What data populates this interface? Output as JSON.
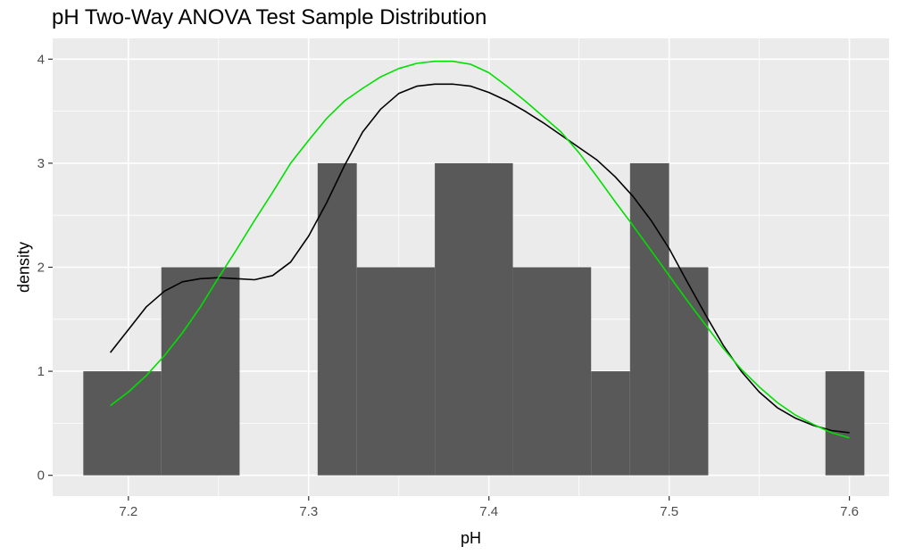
{
  "chart_data": {
    "type": "bar",
    "title": "pH Two-Way ANOVA Test Sample Distribution",
    "xlabel": "pH",
    "ylabel": "density",
    "xlim": [
      7.158,
      7.622
    ],
    "ylim": [
      -0.2,
      4.2
    ],
    "x_ticks": [
      "7.2",
      "7.3",
      "7.4",
      "7.5",
      "7.6"
    ],
    "x_tick_values": [
      7.2,
      7.3,
      7.4,
      7.5,
      7.6
    ],
    "y_ticks": [
      "0",
      "1",
      "2",
      "3",
      "4"
    ],
    "y_tick_values": [
      0,
      1,
      2,
      3,
      4
    ],
    "histogram": {
      "bin_width": 0.0217,
      "color": "#595959",
      "bins": [
        {
          "x0": 7.175,
          "x1": 7.2183,
          "density": 1
        },
        {
          "x0": 7.2183,
          "x1": 7.2617,
          "density": 2
        },
        {
          "x0": 7.305,
          "x1": 7.3267,
          "density": 3
        },
        {
          "x0": 7.3267,
          "x1": 7.37,
          "density": 2
        },
        {
          "x0": 7.37,
          "x1": 7.4133,
          "density": 3
        },
        {
          "x0": 7.4133,
          "x1": 7.4567,
          "density": 2
        },
        {
          "x0": 7.4567,
          "x1": 7.4783,
          "density": 1
        },
        {
          "x0": 7.4783,
          "x1": 7.5,
          "density": 3
        },
        {
          "x0": 7.5,
          "x1": 7.5217,
          "density": 2
        },
        {
          "x0": 7.5867,
          "x1": 7.6083,
          "density": 1
        }
      ]
    },
    "series": [
      {
        "color": "#000000",
        "points": [
          [
            7.19,
            1.18
          ],
          [
            7.2,
            1.4
          ],
          [
            7.21,
            1.62
          ],
          [
            7.22,
            1.77
          ],
          [
            7.23,
            1.86
          ],
          [
            7.24,
            1.89
          ],
          [
            7.25,
            1.9
          ],
          [
            7.26,
            1.89
          ],
          [
            7.27,
            1.88
          ],
          [
            7.28,
            1.92
          ],
          [
            7.29,
            2.05
          ],
          [
            7.3,
            2.3
          ],
          [
            7.31,
            2.62
          ],
          [
            7.32,
            2.98
          ],
          [
            7.33,
            3.3
          ],
          [
            7.34,
            3.52
          ],
          [
            7.35,
            3.67
          ],
          [
            7.36,
            3.74
          ],
          [
            7.37,
            3.76
          ],
          [
            7.38,
            3.76
          ],
          [
            7.39,
            3.74
          ],
          [
            7.4,
            3.68
          ],
          [
            7.41,
            3.6
          ],
          [
            7.42,
            3.5
          ],
          [
            7.43,
            3.39
          ],
          [
            7.44,
            3.27
          ],
          [
            7.45,
            3.15
          ],
          [
            7.46,
            3.03
          ],
          [
            7.47,
            2.87
          ],
          [
            7.48,
            2.68
          ],
          [
            7.49,
            2.45
          ],
          [
            7.5,
            2.18
          ],
          [
            7.51,
            1.86
          ],
          [
            7.52,
            1.55
          ],
          [
            7.53,
            1.25
          ],
          [
            7.54,
            1.0
          ],
          [
            7.55,
            0.8
          ],
          [
            7.56,
            0.65
          ],
          [
            7.57,
            0.55
          ],
          [
            7.58,
            0.48
          ],
          [
            7.59,
            0.43
          ],
          [
            7.6,
            0.41
          ]
        ]
      },
      {
        "color": "#00e000",
        "points": [
          [
            7.19,
            0.67
          ],
          [
            7.2,
            0.8
          ],
          [
            7.21,
            0.96
          ],
          [
            7.22,
            1.15
          ],
          [
            7.23,
            1.37
          ],
          [
            7.24,
            1.62
          ],
          [
            7.25,
            1.9
          ],
          [
            7.26,
            2.17
          ],
          [
            7.27,
            2.45
          ],
          [
            7.28,
            2.72
          ],
          [
            7.29,
            3.0
          ],
          [
            7.3,
            3.22
          ],
          [
            7.31,
            3.43
          ],
          [
            7.32,
            3.6
          ],
          [
            7.33,
            3.72
          ],
          [
            7.34,
            3.83
          ],
          [
            7.35,
            3.91
          ],
          [
            7.36,
            3.96
          ],
          [
            7.37,
            3.98
          ],
          [
            7.38,
            3.98
          ],
          [
            7.39,
            3.95
          ],
          [
            7.4,
            3.87
          ],
          [
            7.41,
            3.74
          ],
          [
            7.42,
            3.6
          ],
          [
            7.43,
            3.45
          ],
          [
            7.44,
            3.3
          ],
          [
            7.45,
            3.1
          ],
          [
            7.46,
            2.87
          ],
          [
            7.47,
            2.63
          ],
          [
            7.48,
            2.4
          ],
          [
            7.49,
            2.16
          ],
          [
            7.5,
            1.92
          ],
          [
            7.51,
            1.68
          ],
          [
            7.52,
            1.45
          ],
          [
            7.53,
            1.22
          ],
          [
            7.54,
            1.02
          ],
          [
            7.55,
            0.85
          ],
          [
            7.56,
            0.7
          ],
          [
            7.57,
            0.58
          ],
          [
            7.58,
            0.49
          ],
          [
            7.59,
            0.41
          ],
          [
            7.6,
            0.36
          ]
        ]
      }
    ],
    "grid": true,
    "panel_background": "#ebebeb",
    "grid_color": "#ffffff"
  }
}
